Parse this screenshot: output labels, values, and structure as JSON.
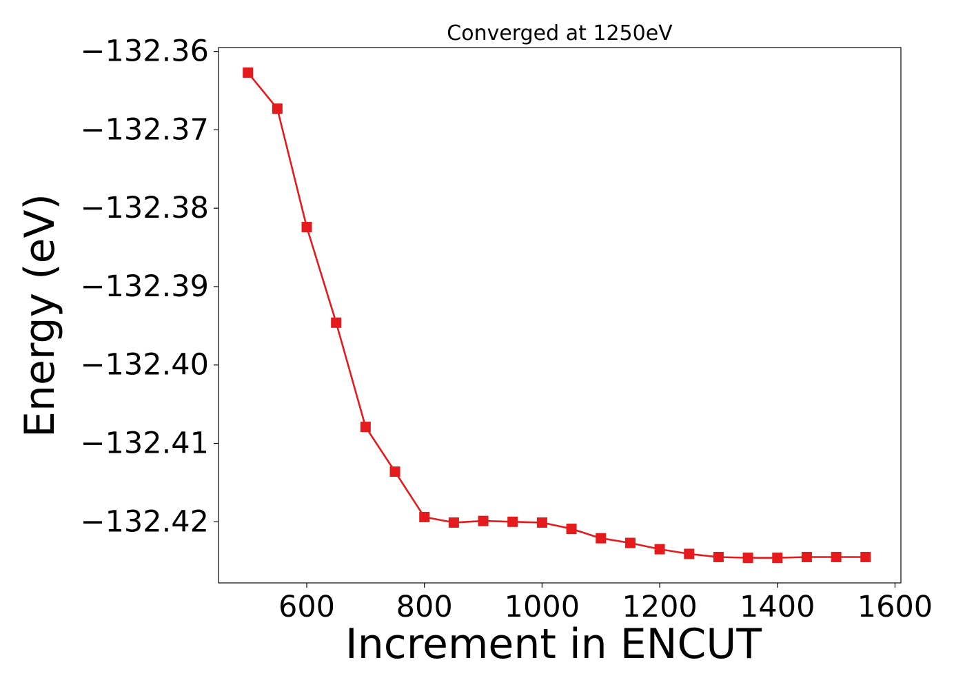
{
  "chart_data": {
    "type": "line",
    "title": "Converged at 1250eV",
    "xlabel": "Increment in ENCUT",
    "ylabel": "Energy (eV)",
    "xlim": [
      450,
      1610
    ],
    "ylim": [
      -132.4278,
      -132.3595
    ],
    "x_ticks": [
      600,
      800,
      1000,
      1200,
      1400,
      1600
    ],
    "x_tick_labels": [
      "600",
      "800",
      "1000",
      "1200",
      "1400",
      "1600"
    ],
    "y_ticks": [
      -132.36,
      -132.37,
      -132.38,
      -132.39,
      -132.4,
      -132.41,
      -132.42
    ],
    "y_tick_labels": [
      "−132.36",
      "−132.37",
      "−132.38",
      "−132.39",
      "−132.40",
      "−132.41",
      "−132.42"
    ],
    "grid": false,
    "series": [
      {
        "color": "#e41a1c",
        "marker": "square",
        "x": [
          500,
          550,
          600,
          650,
          700,
          750,
          800,
          850,
          900,
          950,
          1000,
          1050,
          1100,
          1150,
          1200,
          1250,
          1300,
          1350,
          1400,
          1450,
          1500,
          1550
        ],
        "y": [
          -132.3627,
          -132.3673,
          -132.3824,
          -132.3946,
          -132.4079,
          -132.4136,
          -132.4194,
          -132.4201,
          -132.4199,
          -132.42,
          -132.4201,
          -132.4209,
          -132.4221,
          -132.4227,
          -132.4235,
          -132.4241,
          -132.4245,
          -132.4246,
          -132.4246,
          -132.4245,
          -132.4245,
          -132.4245
        ]
      }
    ]
  }
}
